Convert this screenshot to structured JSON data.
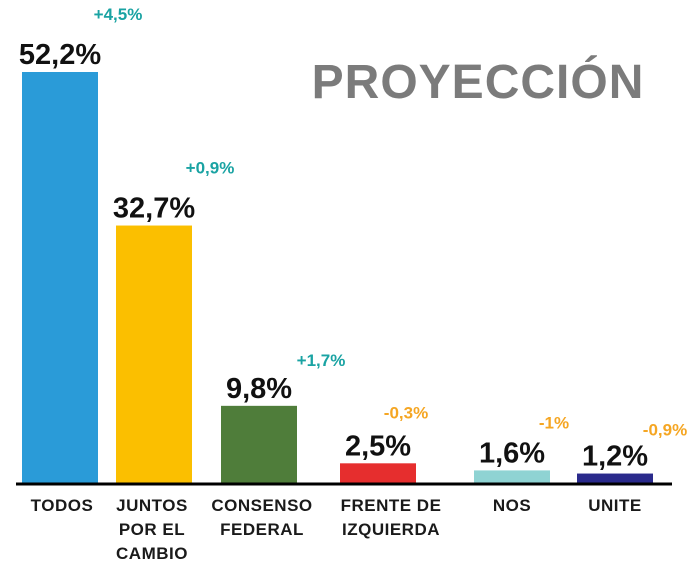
{
  "chart_data": {
    "type": "bar",
    "title": "PROYECCIÓN",
    "categories": [
      [
        "TODOS"
      ],
      [
        "JUNTOS",
        "POR EL",
        "CAMBIO"
      ],
      [
        "CONSENSO",
        "FEDERAL"
      ],
      [
        "FRENTE DE",
        "IZQUIERDA"
      ],
      [
        "NOS"
      ],
      [
        "UNITE"
      ]
    ],
    "values": [
      52.2,
      32.7,
      9.8,
      2.5,
      1.6,
      1.2
    ],
    "value_labels": [
      "52,2%",
      "32,7%",
      "9,8%",
      "2,5%",
      "1,6%",
      "1,2%"
    ],
    "changes": [
      "+4,5%",
      "+0,9%",
      "+1,7%",
      "-0,3%",
      "-1%",
      "-0,9%"
    ],
    "bar_colors": [
      "#2a9bd8",
      "#fbbf00",
      "#4f7d3a",
      "#e62e2e",
      "#8fd3d3",
      "#2a2a8c"
    ],
    "change_colors": {
      "positive": "#1aa3a3",
      "negative": "#f5a623"
    },
    "axis_color": "#000000",
    "ylim": [
      0,
      52.2
    ],
    "grid": false,
    "legend": "none"
  }
}
